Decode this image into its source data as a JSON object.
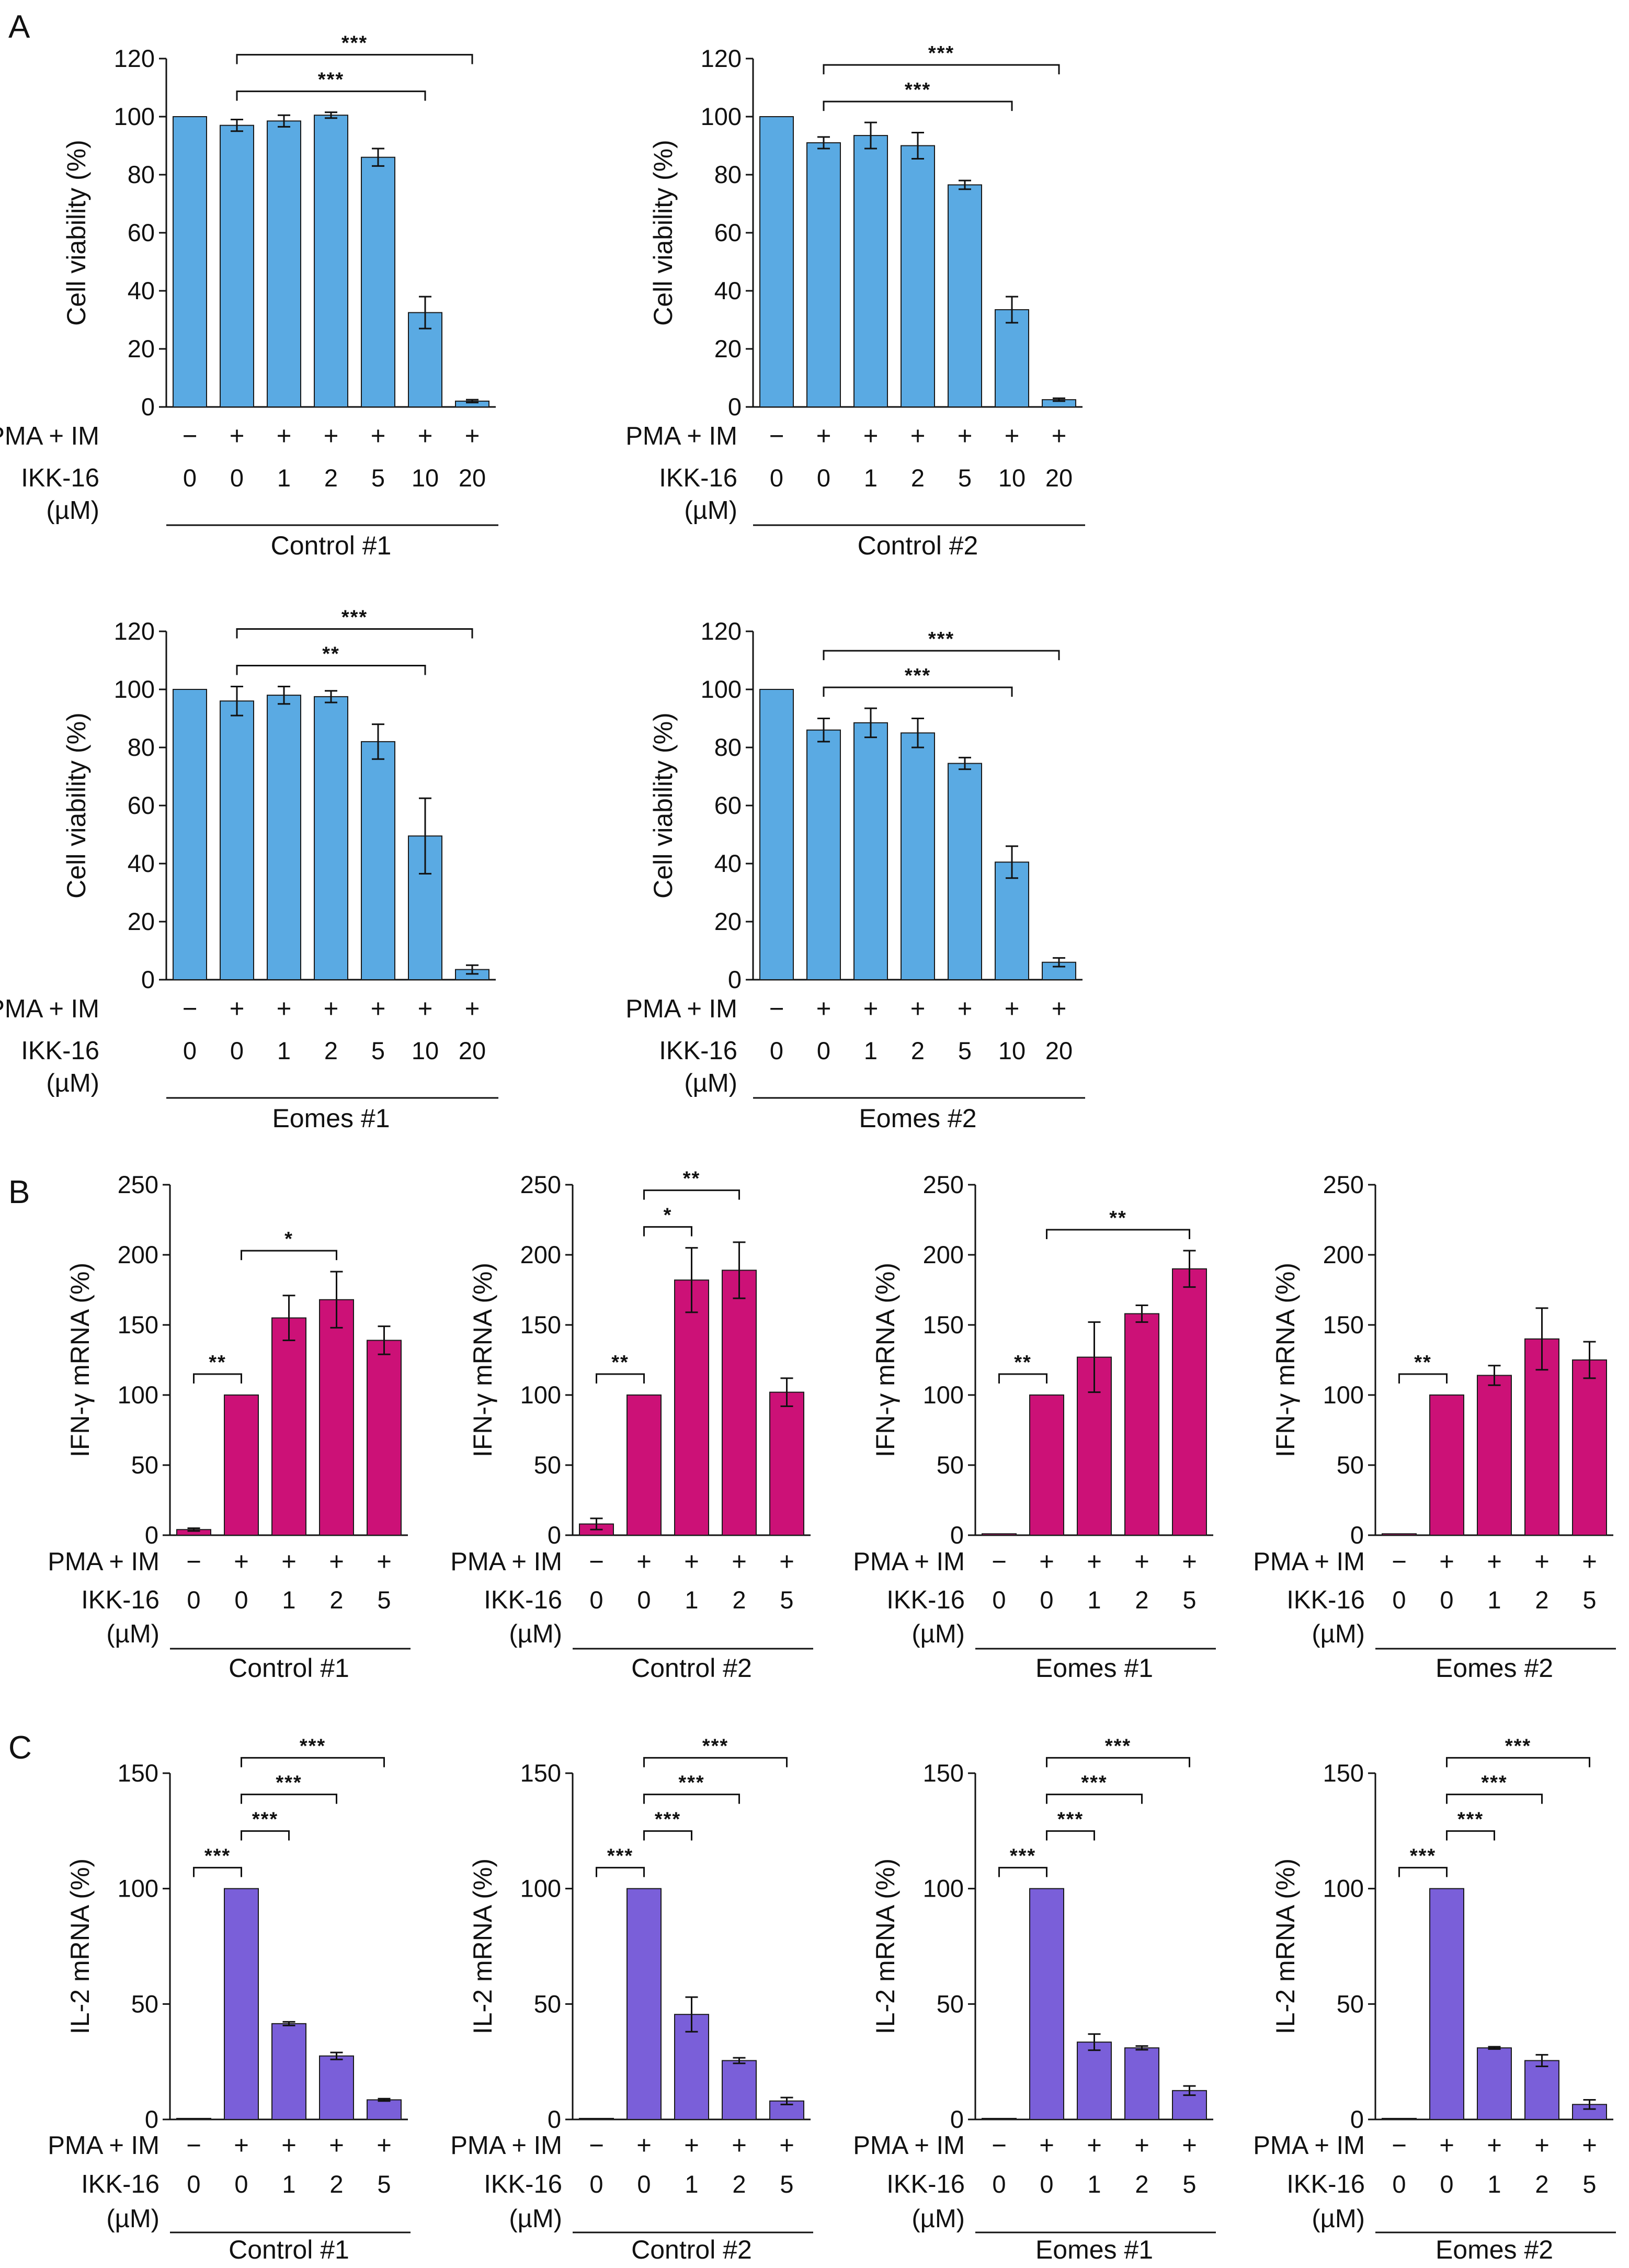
{
  "figure": {
    "panel_letters": [
      "A",
      "B",
      "C"
    ],
    "colors": {
      "A": "#5aaae3",
      "B": "#cc1177",
      "C": "#7a5fd9",
      "axis": "#111111",
      "bar_edge": "#1a1a1a"
    }
  },
  "chart_data": [
    {
      "panel": "A",
      "type": "bar",
      "title": "",
      "ylabel": "Cell viability (%)",
      "ylim": [
        0,
        120
      ],
      "yticks": [
        0,
        20,
        40,
        60,
        80,
        100,
        120
      ],
      "row_labels": [
        "PMA + IM",
        "IKK-16",
        "(µM)"
      ],
      "pma_im": [
        "−",
        "+",
        "+",
        "+",
        "+",
        "+",
        "+"
      ],
      "categories": [
        "0",
        "0",
        "1",
        "2",
        "5",
        "10",
        "20"
      ],
      "values": [
        100,
        97,
        98.5,
        100.5,
        86,
        32.5,
        2
      ],
      "errors": [
        0,
        2,
        2,
        1,
        3,
        5.5,
        0.5
      ],
      "group_label": "Control #1",
      "significance": [
        {
          "from": 1,
          "to": 5,
          "label": "***"
        },
        {
          "from": 1,
          "to": 6,
          "label": "***"
        }
      ]
    },
    {
      "panel": "A",
      "type": "bar",
      "title": "",
      "ylabel": "Cell viability (%)",
      "ylim": [
        0,
        120
      ],
      "yticks": [
        0,
        20,
        40,
        60,
        80,
        100,
        120
      ],
      "row_labels": [
        "PMA + IM",
        "IKK-16",
        "(µM)"
      ],
      "pma_im": [
        "−",
        "+",
        "+",
        "+",
        "+",
        "+",
        "+"
      ],
      "categories": [
        "0",
        "0",
        "1",
        "2",
        "5",
        "10",
        "20"
      ],
      "values": [
        100,
        91,
        93.5,
        90,
        76.5,
        33.5,
        2.5
      ],
      "errors": [
        0,
        2,
        4.5,
        4.5,
        1.5,
        4.5,
        0.5
      ],
      "group_label": "Control #2",
      "significance": [
        {
          "from": 1,
          "to": 5,
          "label": "***"
        },
        {
          "from": 1,
          "to": 6,
          "label": "***"
        }
      ]
    },
    {
      "panel": "A",
      "type": "bar",
      "title": "",
      "ylabel": "Cell viability (%)",
      "ylim": [
        0,
        120
      ],
      "yticks": [
        0,
        20,
        40,
        60,
        80,
        100,
        120
      ],
      "row_labels": [
        "PMA + IM",
        "IKK-16",
        "(µM)"
      ],
      "pma_im": [
        "−",
        "+",
        "+",
        "+",
        "+",
        "+",
        "+"
      ],
      "categories": [
        "0",
        "0",
        "1",
        "2",
        "5",
        "10",
        "20"
      ],
      "values": [
        100,
        96,
        98,
        97.5,
        82,
        49.5,
        3.5
      ],
      "errors": [
        0,
        5,
        3,
        2,
        6,
        13,
        1.5
      ],
      "group_label": "Eomes #1",
      "significance": [
        {
          "from": 1,
          "to": 5,
          "label": "**"
        },
        {
          "from": 1,
          "to": 6,
          "label": "***"
        }
      ]
    },
    {
      "panel": "A",
      "type": "bar",
      "title": "",
      "ylabel": "Cell viability (%)",
      "ylim": [
        0,
        120
      ],
      "yticks": [
        0,
        20,
        40,
        60,
        80,
        100,
        120
      ],
      "row_labels": [
        "PMA + IM",
        "IKK-16",
        "(µM)"
      ],
      "pma_im": [
        "−",
        "+",
        "+",
        "+",
        "+",
        "+",
        "+"
      ],
      "categories": [
        "0",
        "0",
        "1",
        "2",
        "5",
        "10",
        "20"
      ],
      "values": [
        100,
        86,
        88.5,
        85,
        74.5,
        40.5,
        6
      ],
      "errors": [
        0,
        4,
        5,
        5,
        2,
        5.5,
        1.5
      ],
      "group_label": "Eomes #2",
      "significance": [
        {
          "from": 1,
          "to": 5,
          "label": "***"
        },
        {
          "from": 1,
          "to": 6,
          "label": "***"
        }
      ]
    },
    {
      "panel": "B",
      "type": "bar",
      "title": "",
      "ylabel": "IFN-γ mRNA (%)",
      "ylim": [
        0,
        250
      ],
      "yticks": [
        0,
        50,
        100,
        150,
        200,
        250
      ],
      "row_labels": [
        "PMA + IM",
        "IKK-16",
        "(µM)"
      ],
      "pma_im": [
        "−",
        "+",
        "+",
        "+",
        "+"
      ],
      "categories": [
        "0",
        "0",
        "1",
        "2",
        "5"
      ],
      "values": [
        4,
        100,
        155,
        168,
        139
      ],
      "errors": [
        1,
        0,
        16,
        20,
        10
      ],
      "group_label": "Control #1",
      "significance": [
        {
          "from": 0,
          "to": 1,
          "label": "**"
        },
        {
          "from": 1,
          "to": 3,
          "label": "*"
        }
      ]
    },
    {
      "panel": "B",
      "type": "bar",
      "title": "",
      "ylabel": "IFN-γ mRNA (%)",
      "ylim": [
        0,
        250
      ],
      "yticks": [
        0,
        50,
        100,
        150,
        200,
        250
      ],
      "row_labels": [
        "PMA + IM",
        "IKK-16",
        "(µM)"
      ],
      "pma_im": [
        "−",
        "+",
        "+",
        "+",
        "+"
      ],
      "categories": [
        "0",
        "0",
        "1",
        "2",
        "5"
      ],
      "values": [
        8,
        100,
        182,
        189,
        102
      ],
      "errors": [
        4,
        0,
        23,
        20,
        10
      ],
      "group_label": "Control #2",
      "significance": [
        {
          "from": 0,
          "to": 1,
          "label": "**"
        },
        {
          "from": 1,
          "to": 2,
          "label": "*"
        },
        {
          "from": 1,
          "to": 3,
          "label": "**"
        }
      ]
    },
    {
      "panel": "B",
      "type": "bar",
      "title": "",
      "ylabel": "IFN-γ mRNA (%)",
      "ylim": [
        0,
        250
      ],
      "yticks": [
        0,
        50,
        100,
        150,
        200,
        250
      ],
      "row_labels": [
        "PMA + IM",
        "IKK-16",
        "(µM)"
      ],
      "pma_im": [
        "−",
        "+",
        "+",
        "+",
        "+"
      ],
      "categories": [
        "0",
        "0",
        "1",
        "2",
        "5"
      ],
      "values": [
        1,
        100,
        127,
        158,
        190
      ],
      "errors": [
        0,
        0,
        25,
        6,
        13
      ],
      "group_label": "Eomes #1",
      "significance": [
        {
          "from": 0,
          "to": 1,
          "label": "**"
        },
        {
          "from": 1,
          "to": 4,
          "label": "**"
        }
      ]
    },
    {
      "panel": "B",
      "type": "bar",
      "title": "",
      "ylabel": "IFN-γ mRNA (%)",
      "ylim": [
        0,
        250
      ],
      "yticks": [
        0,
        50,
        100,
        150,
        200,
        250
      ],
      "row_labels": [
        "PMA + IM",
        "IKK-16",
        "(µM)"
      ],
      "pma_im": [
        "−",
        "+",
        "+",
        "+",
        "+"
      ],
      "categories": [
        "0",
        "0",
        "1",
        "2",
        "5"
      ],
      "values": [
        1,
        100,
        114,
        140,
        125
      ],
      "errors": [
        0,
        0,
        7,
        22,
        13
      ],
      "group_label": "Eomes #2",
      "significance": [
        {
          "from": 0,
          "to": 1,
          "label": "**"
        }
      ]
    },
    {
      "panel": "C",
      "type": "bar",
      "title": "",
      "ylabel": "IL-2 mRNA (%)",
      "ylim": [
        0,
        150
      ],
      "yticks": [
        0,
        50,
        100,
        150
      ],
      "row_labels": [
        "PMA + IM",
        "IKK-16",
        "(µM)"
      ],
      "pma_im": [
        "−",
        "+",
        "+",
        "+",
        "+"
      ],
      "categories": [
        "0",
        "0",
        "1",
        "2",
        "5"
      ],
      "values": [
        0.3,
        100,
        41.5,
        27.5,
        8.5
      ],
      "errors": [
        0,
        0,
        0.8,
        1.5,
        0.5
      ],
      "group_label": "Control #1",
      "significance": [
        {
          "from": 0,
          "to": 1,
          "label": "***"
        },
        {
          "from": 1,
          "to": 2,
          "label": "***"
        },
        {
          "from": 1,
          "to": 3,
          "label": "***"
        },
        {
          "from": 1,
          "to": 4,
          "label": "***"
        }
      ]
    },
    {
      "panel": "C",
      "type": "bar",
      "title": "",
      "ylabel": "IL-2 mRNA (%)",
      "ylim": [
        0,
        150
      ],
      "yticks": [
        0,
        50,
        100,
        150
      ],
      "row_labels": [
        "PMA + IM",
        "IKK-16",
        "(µM)"
      ],
      "pma_im": [
        "−",
        "+",
        "+",
        "+",
        "+"
      ],
      "categories": [
        "0",
        "0",
        "1",
        "2",
        "5"
      ],
      "values": [
        0.3,
        100,
        45.5,
        25.5,
        8
      ],
      "errors": [
        0,
        0,
        7.5,
        1.2,
        1.5
      ],
      "group_label": "Control #2",
      "significance": [
        {
          "from": 0,
          "to": 1,
          "label": "***"
        },
        {
          "from": 1,
          "to": 2,
          "label": "***"
        },
        {
          "from": 1,
          "to": 3,
          "label": "***"
        },
        {
          "from": 1,
          "to": 4,
          "label": "***"
        }
      ]
    },
    {
      "panel": "C",
      "type": "bar",
      "title": "",
      "ylabel": "IL-2 mRNA (%)",
      "ylim": [
        0,
        150
      ],
      "yticks": [
        0,
        50,
        100,
        150
      ],
      "row_labels": [
        "PMA + IM",
        "IKK-16",
        "(µM)"
      ],
      "pma_im": [
        "−",
        "+",
        "+",
        "+",
        "+"
      ],
      "categories": [
        "0",
        "0",
        "1",
        "2",
        "5"
      ],
      "values": [
        0.3,
        100,
        33.5,
        31,
        12.5
      ],
      "errors": [
        0,
        0,
        3.5,
        0.8,
        2
      ],
      "group_label": "Eomes #1",
      "significance": [
        {
          "from": 0,
          "to": 1,
          "label": "***"
        },
        {
          "from": 1,
          "to": 2,
          "label": "***"
        },
        {
          "from": 1,
          "to": 3,
          "label": "***"
        },
        {
          "from": 1,
          "to": 4,
          "label": "***"
        }
      ]
    },
    {
      "panel": "C",
      "type": "bar",
      "title": "",
      "ylabel": "IL-2 mRNA (%)",
      "ylim": [
        0,
        150
      ],
      "yticks": [
        0,
        50,
        100,
        150
      ],
      "row_labels": [
        "PMA + IM",
        "IKK-16",
        "(µM)"
      ],
      "pma_im": [
        "−",
        "+",
        "+",
        "+",
        "+"
      ],
      "categories": [
        "0",
        "0",
        "1",
        "2",
        "5"
      ],
      "values": [
        0.3,
        100,
        31,
        25.5,
        6.5
      ],
      "errors": [
        0,
        0,
        0.5,
        2.5,
        2
      ],
      "group_label": "Eomes #2",
      "significance": [
        {
          "from": 0,
          "to": 1,
          "label": "***"
        },
        {
          "from": 1,
          "to": 2,
          "label": "***"
        },
        {
          "from": 1,
          "to": 3,
          "label": "***"
        },
        {
          "from": 1,
          "to": 4,
          "label": "***"
        }
      ]
    }
  ]
}
